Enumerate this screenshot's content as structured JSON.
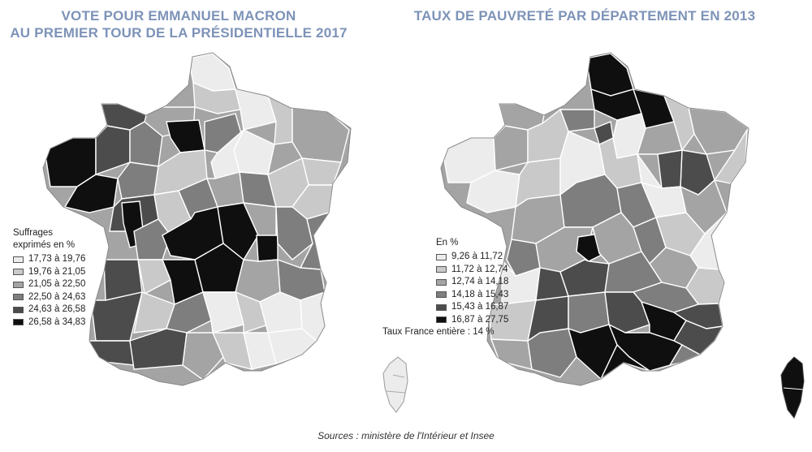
{
  "left_map": {
    "title_line1": "VOTE POUR EMMANUEL MACRON",
    "title_line2": "AU PREMIER TOUR DE LA PRÉSIDENTIELLE 2017",
    "legend_title_line1": "Suffrages",
    "legend_title_line2": "exprimés en %",
    "legend": [
      {
        "label": "17,73 à 19,76",
        "color": "#ececec"
      },
      {
        "label": "19,76 à 21,05",
        "color": "#c9c9c9"
      },
      {
        "label": "21,05 à 22,50",
        "color": "#a4a4a4"
      },
      {
        "label": "22,50 à 24,63",
        "color": "#7e7e7e"
      },
      {
        "label": "24,63 à 26,58",
        "color": "#4c4c4c"
      },
      {
        "label": "26,58 à 34,83",
        "color": "#0f0f0f"
      }
    ]
  },
  "right_map": {
    "title": "TAUX DE PAUVRETÉ PAR DÉPARTEMENT EN 2013",
    "legend_title": "En %",
    "legend": [
      {
        "label": "9,26 à 11,72",
        "color": "#ececec"
      },
      {
        "label": "11,72 à 12,74",
        "color": "#c9c9c9"
      },
      {
        "label": "12,74 à 14,18",
        "color": "#a4a4a4"
      },
      {
        "label": "14,18 à 15,43",
        "color": "#7e7e7e"
      },
      {
        "label": "15,43 à 16,87",
        "color": "#4c4c4c"
      },
      {
        "label": "16,87 à 27,75",
        "color": "#0f0f0f"
      }
    ],
    "note": "Taux France entière : 14 %"
  },
  "source": "Sources : ministère de l'Intérieur et Insee",
  "colors": {
    "title": "#7d93b8",
    "border": "#ffffff",
    "outline": "#888888"
  },
  "icons": [
    "map-left-france",
    "map-right-france",
    "corsica-left",
    "corsica-right"
  ]
}
